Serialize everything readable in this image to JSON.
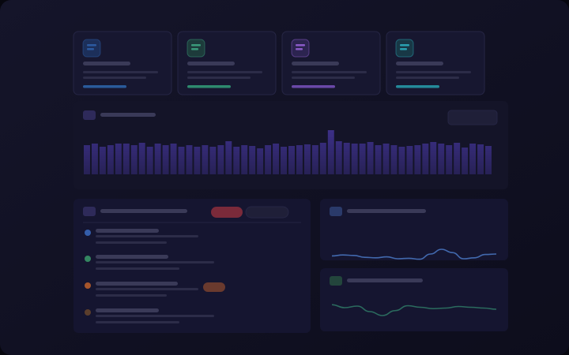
{
  "chart_data": [
    {
      "type": "bar",
      "color": "#4a3aa8",
      "values": [
        37,
        39,
        35,
        37,
        39,
        39,
        37,
        40,
        35,
        39,
        37,
        39,
        35,
        37,
        35,
        37,
        35,
        37,
        42,
        35,
        37,
        36,
        33,
        37,
        39,
        35,
        36,
        37,
        38,
        37,
        40,
        56,
        42,
        40,
        39,
        39,
        41,
        37,
        39,
        37,
        35,
        36,
        37,
        39,
        41,
        39,
        37,
        40,
        34,
        39,
        38,
        36
      ],
      "ylim": [
        0,
        60
      ]
    },
    {
      "type": "line",
      "color": "#4a78c4",
      "values": [
        52,
        56,
        54,
        46,
        44,
        48,
        40,
        42,
        38,
        60,
        80,
        66,
        40,
        44,
        58,
        60
      ],
      "ylim": [
        0,
        100
      ]
    },
    {
      "type": "line",
      "color": "#2f7a66",
      "values": [
        75,
        60,
        68,
        40,
        20,
        45,
        70,
        62,
        55,
        58,
        66,
        62,
        58,
        52
      ],
      "ylim": [
        0,
        100
      ]
    }
  ]
}
